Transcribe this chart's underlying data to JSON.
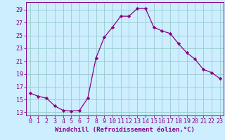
{
  "x": [
    0,
    1,
    2,
    3,
    4,
    5,
    6,
    7,
    8,
    9,
    10,
    11,
    12,
    13,
    14,
    15,
    16,
    17,
    18,
    19,
    20,
    21,
    22,
    23
  ],
  "y": [
    16,
    15.5,
    15.2,
    14.0,
    13.3,
    13.2,
    13.3,
    15.2,
    21.5,
    24.7,
    26.3,
    28.0,
    28.0,
    29.2,
    29.2,
    26.3,
    25.7,
    25.3,
    23.7,
    22.3,
    21.3,
    19.7,
    19.2,
    18.3
  ],
  "line_color": "#880088",
  "marker": "D",
  "marker_size": 2.2,
  "bg_color": "#cceeff",
  "grid_color": "#99cccc",
  "xlabel": "Windchill (Refroidissement éolien,°C)",
  "xlabel_fontsize": 6.5,
  "ylabel_ticks": [
    13,
    15,
    17,
    19,
    21,
    23,
    25,
    27,
    29
  ],
  "xtick_labels": [
    "0",
    "1",
    "2",
    "3",
    "4",
    "5",
    "6",
    "7",
    "8",
    "9",
    "10",
    "11",
    "12",
    "13",
    "14",
    "15",
    "16",
    "17",
    "18",
    "19",
    "20",
    "21",
    "22",
    "23"
  ],
  "ylim": [
    12.5,
    30.2
  ],
  "xlim": [
    -0.5,
    23.5
  ],
  "tick_fontsize": 6.0
}
